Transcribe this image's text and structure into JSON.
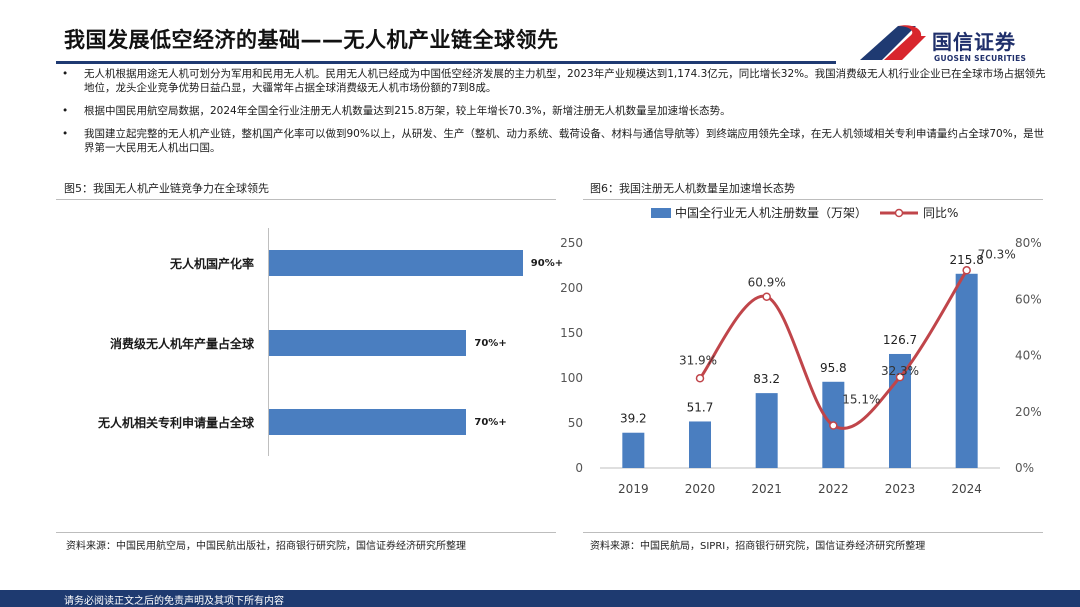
{
  "header": {
    "title": "我国发展低空经济的基础——无人机产业链全球领先",
    "logo_name": "国信证券",
    "logo_sub": "GUOSEN SECURITIES"
  },
  "bullets": [
    "无人机根据用途无人机可划分为军用和民用无人机。民用无人机已经成为中国低空经济发展的主力机型，2023年产业规模达到1,174.3亿元，同比增长32%。我国消费级无人机行业企业已在全球市场占据领先地位，龙头企业竞争优势日益凸显，大疆常年占据全球消费级无人机市场份额的7到8成。",
    "根据中国民用航空局数据，2024年全国全行业注册无人机数量达到215.8万架，较上年增长70.3%，新增注册无人机数量呈加速增长态势。",
    "我国建立起完整的无人机产业链，整机国产化率可以做到90%以上，从研发、生产（整机、动力系统、载荷设备、材料与通信导航等）到终端应用领先全球，在无人机领域相关专利申请量约占全球70%，是世界第一大民用无人机出口国。"
  ],
  "fig5": {
    "title": "图5：我国无人机产业链竞争力在全球领先",
    "source": "资料来源：中国民用航空局，中国民航出版社，招商银行研究院，国信证券经济研究所整理"
  },
  "fig6": {
    "title": "图6：我国注册无人机数量呈加速增长态势",
    "source": "资料来源：中国民航局，SIPRI，招商银行研究院，国信证券经济研究所整理"
  },
  "footer": {
    "text": "请务必阅读正文之后的免责声明及其项下所有内容"
  },
  "colors": {
    "bar": "#4a7ec0",
    "line": "#c0454a",
    "navy": "#1e3a70",
    "logo_red": "#d8262d"
  },
  "chart_data": [
    {
      "type": "bar",
      "orientation": "horizontal",
      "title": "",
      "categories": [
        "无人机国产化率",
        "消费级无人机年产量占全球",
        "无人机相关专利申请量占全球"
      ],
      "values": [
        90,
        70,
        70
      ],
      "value_labels": [
        "90%+",
        "70%+",
        "70%+"
      ],
      "xlim": [
        0,
        100
      ]
    },
    {
      "type": "bar+line",
      "title": "",
      "categories": [
        "2019",
        "2020",
        "2021",
        "2022",
        "2023",
        "2024"
      ],
      "series": [
        {
          "name": "中国全行业无人机注册数量（万架）",
          "type": "bar",
          "axis": "left",
          "values": [
            39.2,
            51.7,
            83.2,
            95.8,
            126.7,
            215.8
          ],
          "labels": [
            "39.2",
            "51.7",
            "83.2",
            "95.8",
            "126.7",
            "215.8"
          ]
        },
        {
          "name": "同比%",
          "type": "line",
          "axis": "right",
          "values": [
            31.9,
            60.9,
            15.1,
            32.3,
            70.3
          ],
          "x": [
            "2020",
            "2021",
            "2022",
            "2023",
            "2024"
          ],
          "labels": [
            "31.9%",
            "60.9%",
            "15.1%",
            "32.3%",
            "70.3%"
          ]
        }
      ],
      "ylim_left": [
        0,
        250
      ],
      "yticks_left": [
        "0",
        "50",
        "100",
        "150",
        "200",
        "250"
      ],
      "ylim_right": [
        0,
        80
      ],
      "yticks_right": [
        "0%",
        "20%",
        "40%",
        "60%",
        "80%"
      ],
      "legend": "top",
      "grid": false
    }
  ]
}
